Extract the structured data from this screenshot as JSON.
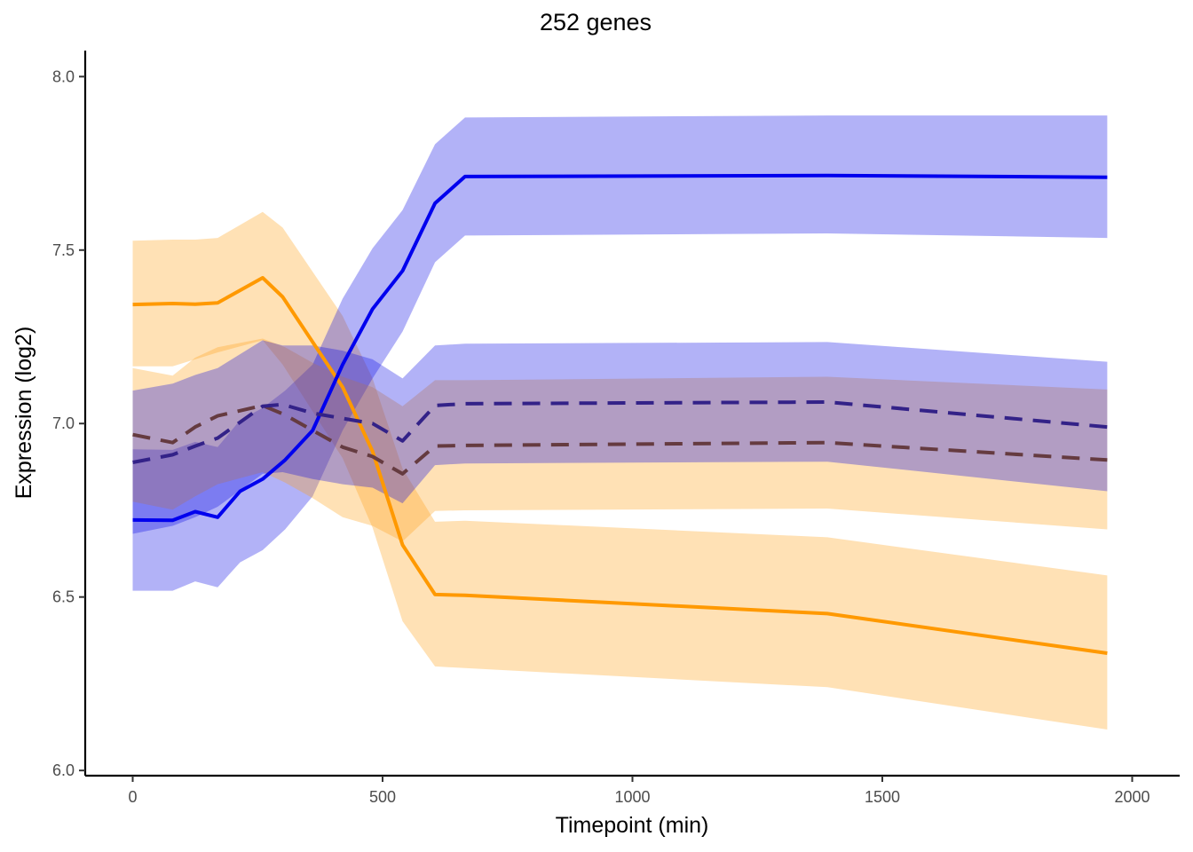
{
  "chart_data": {
    "type": "line",
    "title": "252 genes",
    "xlabel": "Timepoint (min)",
    "ylabel": "Expression (log2)",
    "xlim": [
      -95,
      2095
    ],
    "ylim": [
      5.985,
      8.075
    ],
    "xticks": [
      0,
      500,
      1000,
      1500,
      2000
    ],
    "yticks": [
      6.0,
      6.5,
      7.0,
      7.5,
      8.0
    ],
    "ytick_labels": [
      "6.0",
      "6.5",
      "7.0",
      "7.5",
      "8.0"
    ],
    "grid": false,
    "legend": "none",
    "series": [
      {
        "color": "#ff9900",
        "fill": "#ffa31a",
        "fill_opacity": 0.32,
        "dash": false,
        "x": [
          0,
          80,
          125,
          170,
          260,
          300,
          420,
          480,
          540,
          605,
          665,
          1390,
          1950
        ],
        "y": [
          7.343,
          7.346,
          7.344,
          7.348,
          7.42,
          7.365,
          7.105,
          6.92,
          6.65,
          6.507,
          6.505,
          6.452,
          6.338
        ],
        "lower": [
          7.165,
          7.165,
          7.185,
          7.205,
          7.24,
          7.17,
          6.9,
          6.7,
          6.43,
          6.3,
          6.295,
          6.24,
          6.118
        ],
        "upper": [
          7.527,
          7.53,
          7.53,
          7.535,
          7.61,
          7.565,
          7.31,
          7.13,
          6.87,
          6.717,
          6.72,
          6.672,
          6.562
        ]
      },
      {
        "color": "#0000ee",
        "fill": "#0000e6",
        "fill_opacity": 0.3,
        "dash": false,
        "x": [
          0,
          80,
          125,
          170,
          215,
          260,
          305,
          360,
          420,
          480,
          540,
          605,
          665,
          1390,
          1950
        ],
        "y": [
          6.722,
          6.721,
          6.746,
          6.73,
          6.805,
          6.84,
          6.895,
          6.98,
          7.17,
          7.33,
          7.44,
          7.635,
          7.712,
          7.715,
          7.71
        ],
        "lower": [
          6.518,
          6.518,
          6.545,
          6.528,
          6.6,
          6.635,
          6.695,
          6.79,
          6.98,
          7.13,
          7.265,
          7.465,
          7.542,
          7.548,
          7.535
        ],
        "upper": [
          6.926,
          6.924,
          6.947,
          6.932,
          7.01,
          7.045,
          7.095,
          7.17,
          7.36,
          7.505,
          7.615,
          7.805,
          7.882,
          7.888,
          7.888
        ]
      },
      {
        "color": "#653b40",
        "fill": "#ffa31a",
        "fill_opacity": 0.32,
        "dash": true,
        "x": [
          0,
          80,
          125,
          170,
          260,
          305,
          360,
          420,
          480,
          540,
          605,
          665,
          1390,
          1950
        ],
        "y": [
          6.968,
          6.945,
          6.99,
          7.022,
          7.052,
          7.025,
          6.98,
          6.932,
          6.905,
          6.855,
          6.935,
          6.937,
          6.945,
          6.895
        ],
        "lower": [
          6.775,
          6.752,
          6.79,
          6.825,
          6.86,
          6.83,
          6.785,
          6.73,
          6.705,
          6.66,
          6.748,
          6.75,
          6.755,
          6.695
        ],
        "upper": [
          7.16,
          7.138,
          7.19,
          7.22,
          7.245,
          7.22,
          7.175,
          7.135,
          7.105,
          7.05,
          7.125,
          7.125,
          7.135,
          7.098
        ]
      },
      {
        "color": "#332288",
        "fill": "#0000e6",
        "fill_opacity": 0.3,
        "dash": true,
        "x": [
          0,
          80,
          125,
          170,
          260,
          300,
          360,
          420,
          480,
          540,
          605,
          665,
          1390,
          1950
        ],
        "y": [
          6.888,
          6.91,
          6.935,
          6.958,
          7.05,
          7.055,
          7.03,
          7.015,
          7.0,
          6.95,
          7.052,
          7.057,
          7.062,
          6.99
        ],
        "lower": [
          6.682,
          6.705,
          6.73,
          6.76,
          6.855,
          6.86,
          6.84,
          6.825,
          6.815,
          6.77,
          6.88,
          6.885,
          6.89,
          6.805
        ],
        "upper": [
          7.095,
          7.115,
          7.14,
          7.16,
          7.24,
          7.225,
          7.225,
          7.21,
          7.185,
          7.13,
          7.225,
          7.23,
          7.235,
          7.178
        ]
      }
    ]
  }
}
